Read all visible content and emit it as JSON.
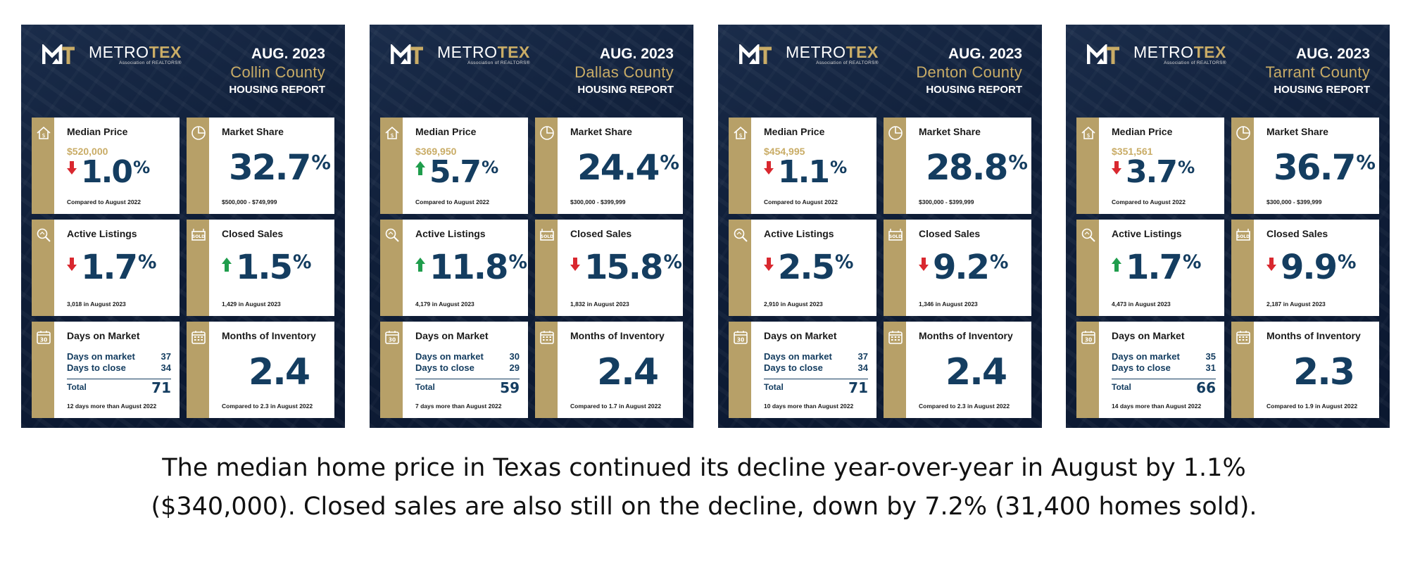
{
  "brand": {
    "name_part1": "METRO",
    "name_part2": "TEX",
    "subtitle": "Association of REALTORS®"
  },
  "reports": [
    {
      "date": "AUG. 2023",
      "county": "Collin County",
      "report_label": "HOUSING REPORT",
      "median_price": {
        "title": "Median Price",
        "price": "$520,000",
        "change": "1.0",
        "direction": "down",
        "note": "Compared to August 2022"
      },
      "market_share": {
        "title": "Market Share",
        "value": "32.7",
        "note": "$500,000 - $749,999"
      },
      "active_listings": {
        "title": "Active Listings",
        "change": "1.7",
        "direction": "down",
        "note": "3,018 in August 2023"
      },
      "closed_sales": {
        "title": "Closed Sales",
        "change": "1.5",
        "direction": "up",
        "note": "1,429 in August 2023"
      },
      "days_on_market": {
        "title": "Days on Market",
        "dom_label": "Days on market",
        "dom_value": "37",
        "close_label": "Days to close",
        "close_value": "34",
        "total_label": "Total",
        "total_value": "71",
        "note": "12 days more than August 2022"
      },
      "months_inventory": {
        "title": "Months of Inventory",
        "value": "2.4",
        "note": "Compared to 2.3 in August 2022"
      }
    },
    {
      "date": "AUG. 2023",
      "county": "Dallas County",
      "report_label": "HOUSING REPORT",
      "median_price": {
        "title": "Median Price",
        "price": "$369,950",
        "change": "5.7",
        "direction": "up",
        "note": "Compared to August 2022"
      },
      "market_share": {
        "title": "Market Share",
        "value": "24.4",
        "note": "$300,000 - $399,999"
      },
      "active_listings": {
        "title": "Active Listings",
        "change": "11.8",
        "direction": "up",
        "note": "4,179 in August 2023"
      },
      "closed_sales": {
        "title": "Closed Sales",
        "change": "15.8",
        "direction": "down",
        "note": "1,832 in August 2023"
      },
      "days_on_market": {
        "title": "Days on Market",
        "dom_label": "Days on market",
        "dom_value": "30",
        "close_label": "Days to close",
        "close_value": "29",
        "total_label": "Total",
        "total_value": "59",
        "note": "7 days more than August 2022"
      },
      "months_inventory": {
        "title": "Months of Inventory",
        "value": "2.4",
        "note": "Compared to 1.7 in August 2022"
      }
    },
    {
      "date": "AUG. 2023",
      "county": "Denton County",
      "report_label": "HOUSING REPORT",
      "median_price": {
        "title": "Median Price",
        "price": "$454,995",
        "change": "1.1",
        "direction": "down",
        "note": "Compared to August 2022"
      },
      "market_share": {
        "title": "Market Share",
        "value": "28.8",
        "note": "$300,000 - $399,999"
      },
      "active_listings": {
        "title": "Active Listings",
        "change": "2.5",
        "direction": "down",
        "note": "2,910 in August 2023"
      },
      "closed_sales": {
        "title": "Closed Sales",
        "change": "9.2",
        "direction": "down",
        "note": "1,346 in August 2023"
      },
      "days_on_market": {
        "title": "Days on Market",
        "dom_label": "Days on market",
        "dom_value": "37",
        "close_label": "Days to close",
        "close_value": "34",
        "total_label": "Total",
        "total_value": "71",
        "note": "10 days more than August 2022"
      },
      "months_inventory": {
        "title": "Months of Inventory",
        "value": "2.4",
        "note": "Compared to 2.3 in August 2022"
      }
    },
    {
      "date": "AUG. 2023",
      "county": "Tarrant County",
      "report_label": "HOUSING REPORT",
      "median_price": {
        "title": "Median Price",
        "price": "$351,561",
        "change": "3.7",
        "direction": "down",
        "note": "Compared to August 2022"
      },
      "market_share": {
        "title": "Market Share",
        "value": "36.7",
        "note": "$300,000 - $399,999"
      },
      "active_listings": {
        "title": "Active Listings",
        "change": "1.7",
        "direction": "up",
        "note": "4,473 in August 2023"
      },
      "closed_sales": {
        "title": "Closed Sales",
        "change": "9.9",
        "direction": "down",
        "note": "2,187 in August 2023"
      },
      "days_on_market": {
        "title": "Days on Market",
        "dom_label": "Days on market",
        "dom_value": "35",
        "close_label": "Days to close",
        "close_value": "31",
        "total_label": "Total",
        "total_value": "66",
        "note": "14 days more than August 2022"
      },
      "months_inventory": {
        "title": "Months of Inventory",
        "value": "2.3",
        "note": "Compared to 1.9 in August 2022"
      }
    }
  ],
  "caption": {
    "line1": "The median home price in Texas continued its decline year-over-year in August by 1.1%",
    "line2": "($340,000). Closed sales are also still on the decline, down by 7.2% (31,400 homes sold)."
  },
  "colors": {
    "navy": "#143d60",
    "gold": "#c9ac66",
    "strip": "#b7a068",
    "up": "#1f9d4c",
    "down": "#d9282f"
  }
}
